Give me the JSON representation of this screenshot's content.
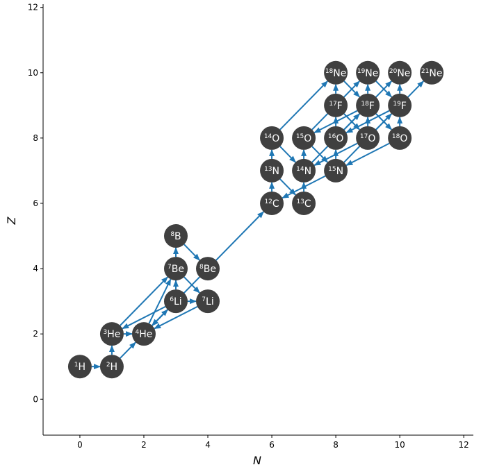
{
  "chart_data": {
    "type": "network",
    "x_label": "N",
    "y_label": "Z",
    "xlim": [
      -1.15,
      12.3
    ],
    "ylim": [
      -1.1,
      12.1
    ],
    "xticks": [
      0,
      2,
      4,
      6,
      8,
      10,
      12
    ],
    "yticks": [
      0,
      2,
      4,
      6,
      8,
      10,
      12
    ],
    "node_color": "#404040",
    "edge_color": "#1f77b4",
    "nodes": [
      {
        "x": 0,
        "y": 1,
        "mass": "1",
        "symbol": "H"
      },
      {
        "x": 1,
        "y": 1,
        "mass": "2",
        "symbol": "H"
      },
      {
        "x": 1,
        "y": 2,
        "mass": "3",
        "symbol": "He"
      },
      {
        "x": 2,
        "y": 2,
        "mass": "4",
        "symbol": "He"
      },
      {
        "x": 3,
        "y": 3,
        "mass": "6",
        "symbol": "Li"
      },
      {
        "x": 4,
        "y": 3,
        "mass": "7",
        "symbol": "Li"
      },
      {
        "x": 3,
        "y": 4,
        "mass": "7",
        "symbol": "Be"
      },
      {
        "x": 4,
        "y": 4,
        "mass": "8",
        "symbol": "Be"
      },
      {
        "x": 3,
        "y": 5,
        "mass": "8",
        "symbol": "B"
      },
      {
        "x": 6,
        "y": 6,
        "mass": "12",
        "symbol": "C"
      },
      {
        "x": 7,
        "y": 6,
        "mass": "13",
        "symbol": "C"
      },
      {
        "x": 6,
        "y": 7,
        "mass": "13",
        "symbol": "N"
      },
      {
        "x": 7,
        "y": 7,
        "mass": "14",
        "symbol": "N"
      },
      {
        "x": 8,
        "y": 7,
        "mass": "15",
        "symbol": "N"
      },
      {
        "x": 6,
        "y": 8,
        "mass": "14",
        "symbol": "O"
      },
      {
        "x": 7,
        "y": 8,
        "mass": "15",
        "symbol": "O"
      },
      {
        "x": 8,
        "y": 8,
        "mass": "16",
        "symbol": "O"
      },
      {
        "x": 9,
        "y": 8,
        "mass": "17",
        "symbol": "O"
      },
      {
        "x": 10,
        "y": 8,
        "mass": "18",
        "symbol": "O"
      },
      {
        "x": 8,
        "y": 9,
        "mass": "17",
        "symbol": "F"
      },
      {
        "x": 9,
        "y": 9,
        "mass": "18",
        "symbol": "F"
      },
      {
        "x": 10,
        "y": 9,
        "mass": "19",
        "symbol": "F"
      },
      {
        "x": 8,
        "y": 10,
        "mass": "18",
        "symbol": "Ne"
      },
      {
        "x": 9,
        "y": 10,
        "mass": "19",
        "symbol": "Ne"
      },
      {
        "x": 10,
        "y": 10,
        "mass": "20",
        "symbol": "Ne"
      },
      {
        "x": 11,
        "y": 10,
        "mass": "21",
        "symbol": "Ne"
      }
    ],
    "edges": [
      [
        0,
        1
      ],
      [
        1,
        2
      ],
      [
        2,
        3
      ],
      [
        1,
        3
      ],
      [
        3,
        4
      ],
      [
        4,
        5
      ],
      [
        4,
        6
      ],
      [
        2,
        6
      ],
      [
        3,
        6
      ],
      [
        6,
        5
      ],
      [
        6,
        8
      ],
      [
        8,
        7
      ],
      [
        7,
        3
      ],
      [
        5,
        3
      ],
      [
        4,
        2
      ],
      [
        4,
        3
      ],
      [
        7,
        9
      ],
      [
        9,
        11
      ],
      [
        11,
        10
      ],
      [
        10,
        12
      ],
      [
        12,
        15
      ],
      [
        15,
        13
      ],
      [
        13,
        9
      ],
      [
        13,
        16
      ],
      [
        16,
        19
      ],
      [
        19,
        17
      ],
      [
        17,
        12
      ],
      [
        17,
        20
      ],
      [
        20,
        18
      ],
      [
        18,
        13
      ],
      [
        18,
        21
      ],
      [
        21,
        16
      ],
      [
        11,
        14
      ],
      [
        14,
        12
      ],
      [
        14,
        22
      ],
      [
        15,
        23
      ],
      [
        23,
        21
      ],
      [
        19,
        22
      ],
      [
        22,
        20
      ],
      [
        20,
        23
      ],
      [
        21,
        24
      ],
      [
        20,
        15
      ],
      [
        16,
        24
      ],
      [
        17,
        25
      ],
      [
        12,
        20
      ],
      [
        13,
        21
      ]
    ]
  }
}
